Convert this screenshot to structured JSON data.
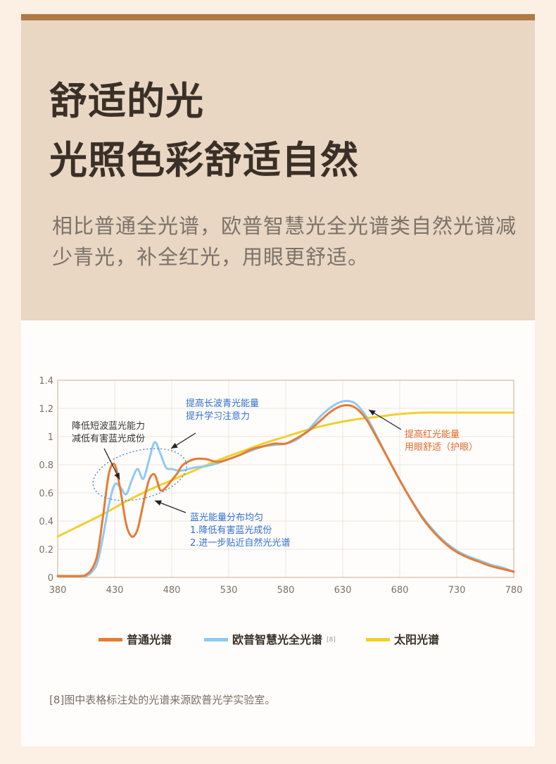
{
  "hero": {
    "title_line1": "舒适的光",
    "title_line2": "光照色彩舒适自然",
    "description": "相比普通全光谱，欧普智慧光全光谱类自然光谱减少青光，补全红光，用眼更舒适。"
  },
  "colors": {
    "top_bar": "#b07a45",
    "hero_bg": "#e9d7c4",
    "page_bg": "#fcefe3",
    "card_bg": "#fffdfb"
  },
  "chart_data": {
    "type": "line",
    "xlim": [
      380,
      780
    ],
    "ylim": [
      0,
      1.4
    ],
    "x_ticks": [
      "380",
      "430",
      "480",
      "530",
      "580",
      "630",
      "680",
      "730",
      "780"
    ],
    "y_ticks": [
      "0",
      "0.2",
      "0.4",
      "0.6",
      "0.8",
      "1",
      "1.2",
      "1.4"
    ],
    "grid": true,
    "legend": "bottom",
    "series": [
      {
        "name": "普通光谱",
        "color": "#e67b33",
        "x": [
          380,
          400,
          405,
          410,
          415,
          420,
          425,
          430,
          435,
          440,
          445,
          450,
          455,
          460,
          465,
          470,
          475,
          480,
          485,
          490,
          500,
          510,
          520,
          530,
          540,
          550,
          560,
          570,
          580,
          590,
          600,
          610,
          620,
          630,
          640,
          650,
          660,
          670,
          680,
          690,
          700,
          710,
          720,
          730,
          740,
          750,
          760,
          770,
          780
        ],
        "y": [
          0.01,
          0.01,
          0.02,
          0.06,
          0.17,
          0.45,
          0.74,
          0.8,
          0.62,
          0.38,
          0.29,
          0.34,
          0.52,
          0.69,
          0.73,
          0.62,
          0.64,
          0.69,
          0.74,
          0.8,
          0.84,
          0.84,
          0.82,
          0.84,
          0.87,
          0.91,
          0.93,
          0.95,
          0.95,
          0.99,
          1.04,
          1.11,
          1.18,
          1.22,
          1.21,
          1.13,
          0.99,
          0.84,
          0.69,
          0.55,
          0.42,
          0.32,
          0.24,
          0.18,
          0.14,
          0.11,
          0.08,
          0.06,
          0.04
        ]
      },
      {
        "name": "欧普智慧光全光谱",
        "color": "#8fc9f4",
        "x": [
          380,
          400,
          405,
          410,
          415,
          420,
          425,
          430,
          435,
          440,
          445,
          450,
          455,
          460,
          465,
          470,
          475,
          480,
          485,
          490,
          500,
          510,
          520,
          530,
          540,
          550,
          560,
          570,
          580,
          590,
          600,
          610,
          620,
          630,
          640,
          650,
          660,
          670,
          680,
          690,
          700,
          710,
          720,
          730,
          740,
          750,
          760,
          770,
          780
        ],
        "y": [
          0.01,
          0.01,
          0.01,
          0.04,
          0.11,
          0.3,
          0.52,
          0.66,
          0.64,
          0.59,
          0.69,
          0.77,
          0.7,
          0.83,
          0.96,
          0.88,
          0.78,
          0.77,
          0.76,
          0.76,
          0.78,
          0.79,
          0.81,
          0.84,
          0.87,
          0.9,
          0.93,
          0.94,
          0.95,
          0.98,
          1.05,
          1.14,
          1.21,
          1.25,
          1.24,
          1.15,
          1.0,
          0.84,
          0.69,
          0.55,
          0.43,
          0.33,
          0.25,
          0.19,
          0.15,
          0.12,
          0.09,
          0.07,
          0.04
        ]
      },
      {
        "name": "太阳光谱",
        "color": "#f2cf2e",
        "x": [
          380,
          400,
          420,
          440,
          460,
          480,
          500,
          520,
          540,
          560,
          580,
          600,
          620,
          640,
          660,
          680,
          700,
          720,
          740,
          760,
          780
        ],
        "y": [
          0.29,
          0.37,
          0.45,
          0.54,
          0.62,
          0.69,
          0.76,
          0.83,
          0.89,
          0.95,
          1.0,
          1.05,
          1.09,
          1.12,
          1.14,
          1.16,
          1.17,
          1.17,
          1.17,
          1.17,
          1.17
        ]
      }
    ],
    "annotations": {
      "left": [
        "降低短波蓝光能力",
        "减低有害蓝光成份"
      ],
      "top": [
        "提高长波青光能量",
        "提升学习注意力"
      ],
      "mid": [
        "蓝光能量分布均匀",
        "1.降低有害蓝光成份",
        "2.进一步贴近自然光光谱"
      ],
      "right": [
        "提高红光能量",
        "用眼舒适（护眼）"
      ]
    },
    "legend_sup": "[8]"
  },
  "footnote": "[8]图中表格标注处的光谱来源欧普光学实验室。"
}
